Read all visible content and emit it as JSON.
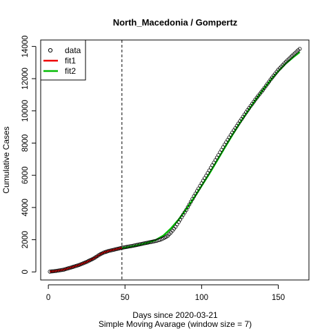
{
  "chart_data": {
    "type": "scatter",
    "title": "North_Macedonia / Gompertz",
    "xlabel": "Days since 2020-03-21",
    "xlabel2": "Simple Moving Avarage (window size = 7)",
    "ylabel": "Cumulative Cases",
    "xlim": [
      -5,
      170
    ],
    "ylim": [
      -500,
      14400
    ],
    "xticks": [
      0,
      50,
      100,
      150
    ],
    "yticks": [
      0,
      2000,
      4000,
      6000,
      8000,
      10000,
      12000,
      14000
    ],
    "vline_x": 48,
    "legend_position": "top-left",
    "legend": [
      {
        "label": "data",
        "kind": "point",
        "color": "#000000"
      },
      {
        "label": "fit1",
        "kind": "line",
        "color": "#ee0000"
      },
      {
        "label": "fit2",
        "kind": "line",
        "color": "#00bb00"
      }
    ],
    "data_points": {
      "x_start": 1,
      "x_end": 164,
      "anchors": [
        [
          1,
          20
        ],
        [
          5,
          60
        ],
        [
          10,
          140
        ],
        [
          15,
          280
        ],
        [
          20,
          430
        ],
        [
          25,
          620
        ],
        [
          30,
          860
        ],
        [
          33,
          1050
        ],
        [
          36,
          1200
        ],
        [
          40,
          1320
        ],
        [
          45,
          1430
        ],
        [
          48,
          1500
        ],
        [
          55,
          1620
        ],
        [
          60,
          1720
        ],
        [
          65,
          1820
        ],
        [
          70,
          1920
        ],
        [
          73,
          2000
        ],
        [
          75,
          2080
        ],
        [
          78,
          2250
        ],
        [
          80,
          2450
        ],
        [
          83,
          2800
        ],
        [
          86,
          3250
        ],
        [
          90,
          3850
        ],
        [
          95,
          4700
        ],
        [
          100,
          5500
        ],
        [
          105,
          6300
        ],
        [
          110,
          7100
        ],
        [
          115,
          7900
        ],
        [
          120,
          8650
        ],
        [
          125,
          9350
        ],
        [
          130,
          10050
        ],
        [
          135,
          10700
        ],
        [
          140,
          11300
        ],
        [
          145,
          11950
        ],
        [
          150,
          12550
        ],
        [
          155,
          13050
        ],
        [
          160,
          13500
        ],
        [
          164,
          13850
        ]
      ]
    },
    "series": [
      {
        "name": "fit1",
        "color": "#ee0000",
        "x": [
          1,
          5,
          10,
          15,
          20,
          25,
          30,
          33,
          36,
          40,
          45,
          48
        ],
        "y": [
          20,
          60,
          140,
          280,
          430,
          620,
          860,
          1050,
          1200,
          1320,
          1430,
          1500
        ]
      },
      {
        "name": "fit2",
        "color": "#00bb00",
        "x": [
          48,
          55,
          60,
          65,
          70,
          75,
          80,
          85,
          90,
          95,
          100,
          105,
          110,
          115,
          120,
          125,
          130,
          135,
          140,
          145,
          150,
          155,
          160,
          164
        ],
        "y": [
          1480,
          1600,
          1700,
          1820,
          1980,
          2250,
          2700,
          3250,
          3900,
          4600,
          5350,
          6100,
          6900,
          7700,
          8500,
          9250,
          9950,
          10650,
          11300,
          11900,
          12450,
          12950,
          13350,
          13650
        ]
      }
    ]
  }
}
